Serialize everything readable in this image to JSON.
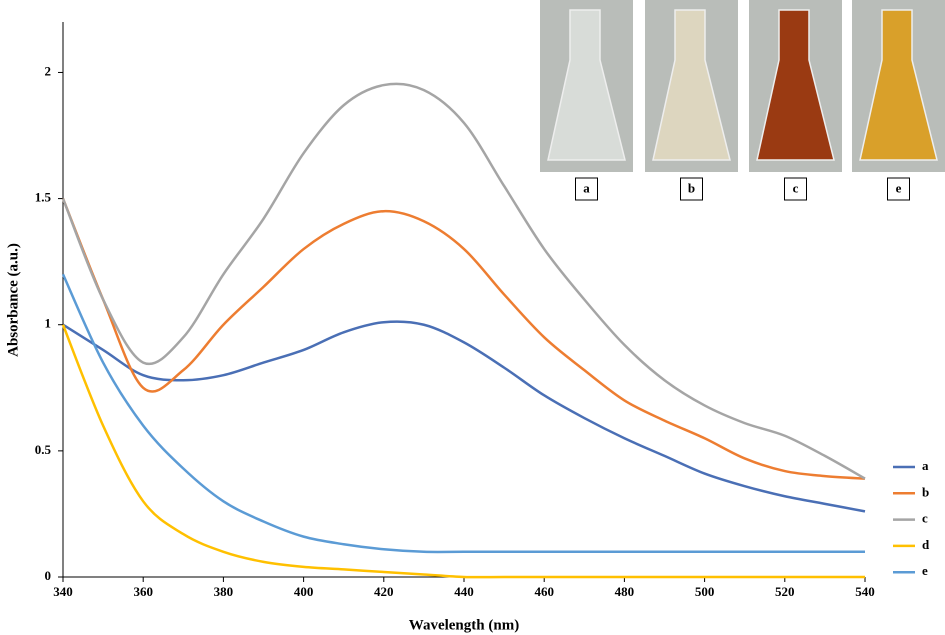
{
  "chart_data": {
    "type": "line",
    "xlabel": "Wavelength (nm)",
    "ylabel": "Absorbance (a.u.)",
    "x": [
      340,
      350,
      360,
      370,
      380,
      390,
      400,
      410,
      420,
      430,
      440,
      450,
      460,
      470,
      480,
      490,
      500,
      510,
      520,
      530,
      540
    ],
    "xlim": [
      340,
      540
    ],
    "xticks": [
      340,
      360,
      380,
      400,
      420,
      440,
      460,
      480,
      500,
      520,
      540
    ],
    "ylim": [
      0,
      2.2
    ],
    "yticks": [
      0,
      0.5,
      1,
      1.5,
      2
    ],
    "grid": false,
    "legend": "right",
    "series": [
      {
        "name": "a",
        "color": "#4a6fb5",
        "values": [
          1.0,
          0.9,
          0.8,
          0.78,
          0.8,
          0.85,
          0.9,
          0.97,
          1.01,
          1.0,
          0.93,
          0.83,
          0.72,
          0.63,
          0.55,
          0.48,
          0.41,
          0.36,
          0.32,
          0.29,
          0.26
        ]
      },
      {
        "name": "b",
        "color": "#ed7d31",
        "values": [
          1.5,
          1.1,
          0.75,
          0.82,
          1.0,
          1.15,
          1.3,
          1.4,
          1.45,
          1.41,
          1.3,
          1.12,
          0.95,
          0.82,
          0.7,
          0.62,
          0.55,
          0.47,
          0.42,
          0.4,
          0.39
        ]
      },
      {
        "name": "c",
        "color": "#a5a5a5",
        "values": [
          1.5,
          1.1,
          0.85,
          0.95,
          1.2,
          1.42,
          1.68,
          1.87,
          1.95,
          1.93,
          1.8,
          1.55,
          1.3,
          1.1,
          0.92,
          0.78,
          0.68,
          0.61,
          0.56,
          0.48,
          0.39
        ]
      },
      {
        "name": "d",
        "color": "#ffc000",
        "values": [
          1.0,
          0.6,
          0.3,
          0.17,
          0.1,
          0.06,
          0.04,
          0.03,
          0.02,
          0.01,
          0,
          0,
          0,
          0,
          0,
          0,
          0,
          0,
          0,
          0,
          0
        ]
      },
      {
        "name": "e",
        "color": "#5b9bd5",
        "values": [
          1.2,
          0.85,
          0.6,
          0.43,
          0.3,
          0.22,
          0.16,
          0.13,
          0.11,
          0.1,
          0.1,
          0.1,
          0.1,
          0.1,
          0.1,
          0.1,
          0.1,
          0.1,
          0.1,
          0.1,
          0.1
        ]
      }
    ],
    "photos": [
      {
        "label": "a",
        "color": "#d8dcd8"
      },
      {
        "label": "b",
        "color": "#ddd6bf"
      },
      {
        "label": "c",
        "color": "#9a3a12"
      },
      {
        "label": "e",
        "color": "#d9a02a"
      }
    ]
  }
}
